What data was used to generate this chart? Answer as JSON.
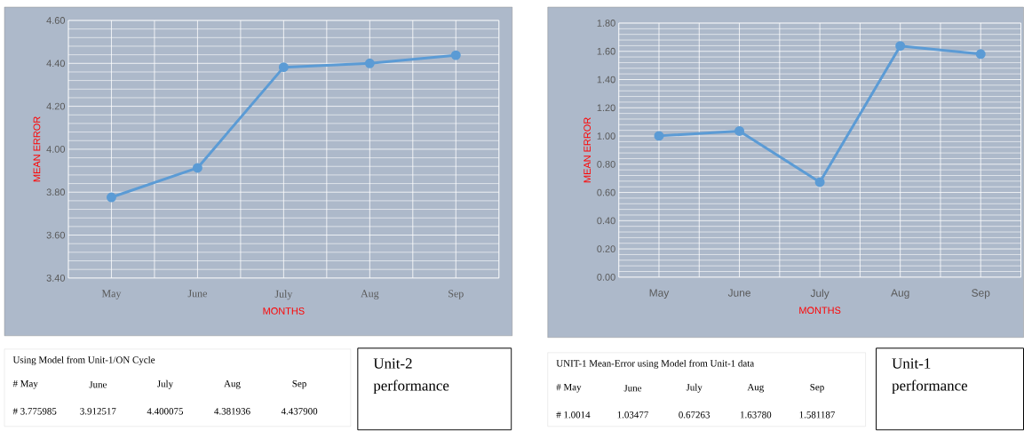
{
  "chart_data": [
    {
      "type": "line",
      "xlabel": "MONTHS",
      "ylabel": "MEAN ERROR",
      "categories": [
        "May",
        "June",
        "July",
        "Aug",
        "Sep"
      ],
      "series": [
        {
          "color": "#5b9bd5",
          "values": [
            3.776,
            3.913,
            4.382,
            4.4,
            4.438
          ]
        }
      ],
      "ylim": [
        3.4,
        4.6
      ],
      "yticks": [
        {
          "value": 3.4,
          "label": "3.40"
        },
        {
          "value": 3.6,
          "label": "3.60"
        },
        {
          "value": 3.8,
          "label": "3.80"
        },
        {
          "value": 4.0,
          "label": "4.00"
        },
        {
          "value": 4.2,
          "label": "4.20"
        },
        {
          "value": 4.4,
          "label": "4.40"
        },
        {
          "value": 4.6,
          "label": "4.60"
        }
      ],
      "grid": true,
      "marker": "circle",
      "line_style": "solid",
      "annotations": [
        "Using Model from Unit-1/ON Cycle",
        "# May",
        "June",
        "July",
        "Aug",
        "Sep",
        "# 3.775985",
        "3.912517",
        "4.400075",
        "4.381936",
        "4.437900",
        "Unit-2 performance"
      ]
    },
    {
      "type": "line",
      "xlabel": "MONTHS",
      "ylabel": "MEAN ERROR",
      "categories": [
        "May",
        "June",
        "July",
        "Aug",
        "Sep"
      ],
      "series": [
        {
          "color": "#5b9bd5",
          "values": [
            1.001,
            1.035,
            0.673,
            1.638,
            1.581
          ]
        }
      ],
      "ylim": [
        0,
        1.8
      ],
      "yticks": [
        {
          "value": 0,
          "label": "0.00"
        },
        {
          "value": 0.2,
          "label": "0.20"
        },
        {
          "value": 0.4,
          "label": "0.40"
        },
        {
          "value": 0.6,
          "label": "0.60"
        },
        {
          "value": 0.8,
          "label": "0.80"
        },
        {
          "value": 1.0,
          "label": "1.00"
        },
        {
          "value": 1.2,
          "label": "1.20"
        },
        {
          "value": 1.4,
          "label": "1.40"
        },
        {
          "value": 1.6,
          "label": "1.60"
        },
        {
          "value": 1.8,
          "label": "1.80"
        }
      ],
      "grid": true,
      "marker": "circle",
      "line_style": "solid",
      "annotations": [
        "UNIT-1 Mean-Error using Model from Unit-1 data",
        "# May",
        "June",
        "July",
        "Aug",
        "Sep",
        "# 1.0014",
        "1.03477",
        "0.67263",
        "1.63780",
        "1.581187",
        "Unit-1 performance"
      ]
    }
  ]
}
